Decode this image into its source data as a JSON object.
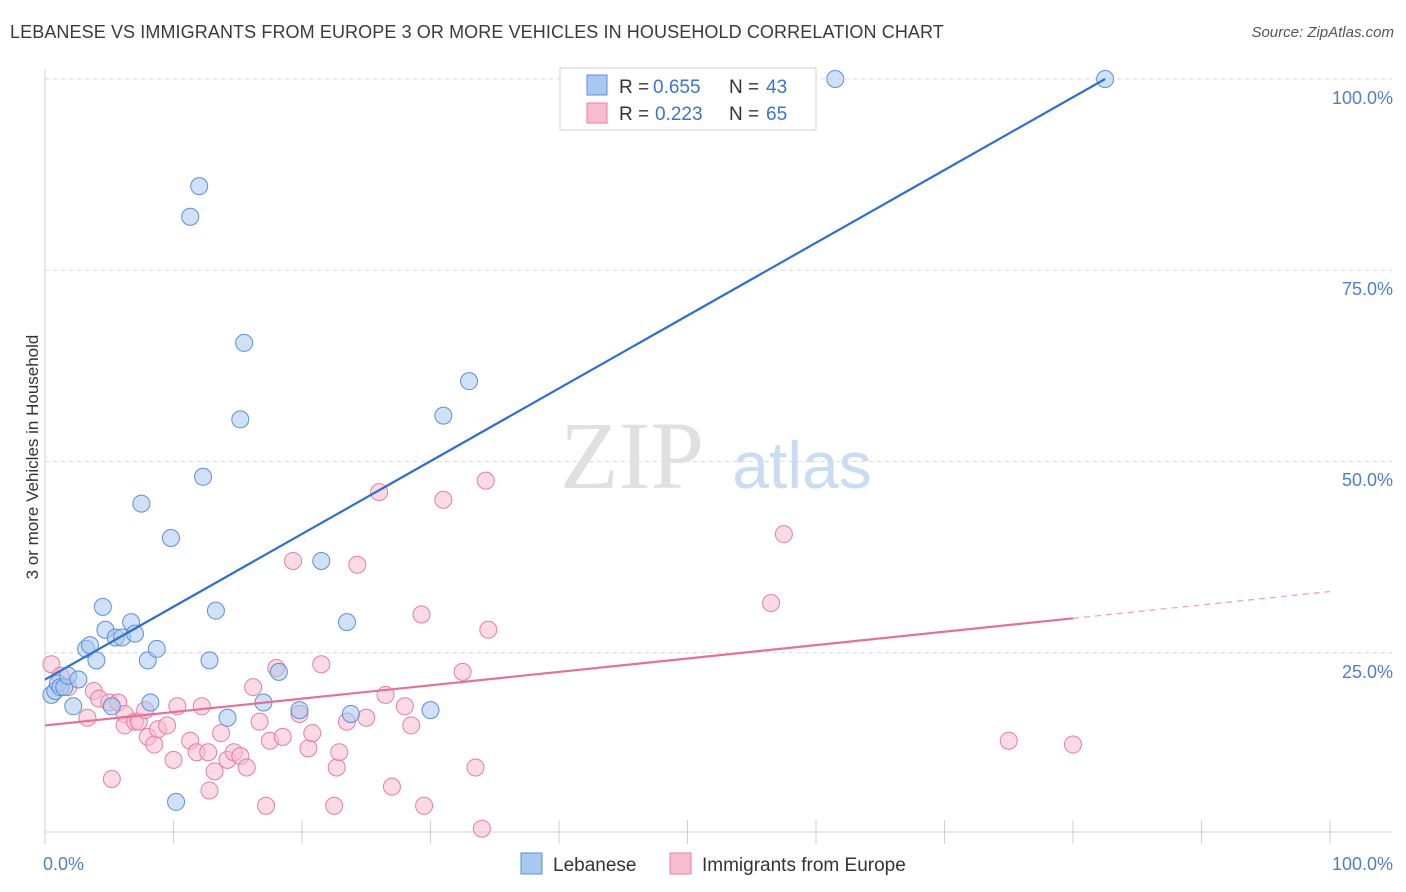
{
  "title": "LEBANESE VS IMMIGRANTS FROM EUROPE 3 OR MORE VEHICLES IN HOUSEHOLD CORRELATION CHART",
  "source": "Source: ZipAtlas.com",
  "watermark": {
    "zip": "ZIP",
    "atlas": "atlas"
  },
  "colors": {
    "blue_fill": "#a9c8f0",
    "blue_stroke": "#5b8fd6",
    "blue_line": "#2f6fcf",
    "pink_fill": "#f7bcd0",
    "pink_stroke": "#e47fa2",
    "pink_line": "#e5709a",
    "tick": "#4f7fc7",
    "grid": "#d9d9d9"
  },
  "legend": {
    "rows": [
      {
        "r_label": "R =",
        "r_value": "0.655",
        "n_label": "N =",
        "n_value": "43"
      },
      {
        "r_label": "R =",
        "r_value": "0.223",
        "n_label": "N =",
        "n_value": "65"
      }
    ]
  },
  "bottom_legend": [
    "Lebanese",
    "Immigrants from Europe"
  ],
  "chart_data": {
    "type": "scatter",
    "title": "LEBANESE VS IMMIGRANTS FROM EUROPE 3 OR MORE VEHICLES IN HOUSEHOLD CORRELATION CHART",
    "xlabel": "",
    "ylabel": "3 or more Vehicles in Household",
    "xlim": [
      0,
      100
    ],
    "ylim": [
      0,
      100
    ],
    "x_ticks": [
      "0.0%",
      "100.0%"
    ],
    "y_ticks": [
      "25.0%",
      "50.0%",
      "75.0%",
      "100.0%"
    ],
    "legend_position": "top-center",
    "grid": true,
    "series": [
      {
        "name": "Lebanese",
        "r": 0.655,
        "n": 43,
        "trend": [
          [
            0,
            21.5
          ],
          [
            82.5,
            100
          ]
        ],
        "points": [
          [
            0.5,
            19.5
          ],
          [
            0.8,
            20
          ],
          [
            1,
            21
          ],
          [
            1.2,
            20.5
          ],
          [
            1.5,
            20.5
          ],
          [
            1.8,
            22
          ],
          [
            2.2,
            18
          ],
          [
            2.6,
            21.5
          ],
          [
            3.2,
            25.5
          ],
          [
            3.5,
            26
          ],
          [
            4,
            24
          ],
          [
            4.5,
            31
          ],
          [
            4.7,
            28
          ],
          [
            5.2,
            18
          ],
          [
            5.5,
            27
          ],
          [
            6,
            27
          ],
          [
            6.7,
            29
          ],
          [
            7,
            27.5
          ],
          [
            7.5,
            44.5
          ],
          [
            8,
            24
          ],
          [
            8.2,
            18.5
          ],
          [
            8.7,
            25.5
          ],
          [
            9.8,
            40
          ],
          [
            10.2,
            5.5
          ],
          [
            11.3,
            82
          ],
          [
            12,
            86
          ],
          [
            12.3,
            48
          ],
          [
            12.8,
            24
          ],
          [
            13.3,
            30.5
          ],
          [
            14.2,
            16.5
          ],
          [
            15.2,
            55.5
          ],
          [
            15.5,
            65.5
          ],
          [
            17,
            18.5
          ],
          [
            18.2,
            22.5
          ],
          [
            19.8,
            17.5
          ],
          [
            21.5,
            37
          ],
          [
            23.5,
            29
          ],
          [
            23.8,
            17
          ],
          [
            30,
            17.5
          ],
          [
            31,
            56
          ],
          [
            33,
            60.5
          ],
          [
            61.5,
            100
          ],
          [
            82.5,
            100
          ]
        ]
      },
      {
        "name": "Immigrants from Europe",
        "r": 0.223,
        "n": 65,
        "trend": [
          [
            0,
            15.5
          ],
          [
            80,
            29.5
          ]
        ],
        "trend_dashed_to": [
          100,
          33
        ],
        "points": [
          [
            0.5,
            23.5
          ],
          [
            1.2,
            22
          ],
          [
            1.8,
            20.5
          ],
          [
            3.3,
            16.5
          ],
          [
            3.8,
            20
          ],
          [
            4.2,
            19
          ],
          [
            5,
            18.5
          ],
          [
            5.2,
            8.5
          ],
          [
            5.7,
            18.5
          ],
          [
            6.2,
            17
          ],
          [
            6.2,
            15.5
          ],
          [
            7,
            16
          ],
          [
            7.3,
            16
          ],
          [
            7.8,
            17.5
          ],
          [
            8,
            14
          ],
          [
            8.5,
            13
          ],
          [
            8.8,
            15
          ],
          [
            9.5,
            15.5
          ],
          [
            10,
            11
          ],
          [
            10.3,
            18
          ],
          [
            11.3,
            13.5
          ],
          [
            11.8,
            12
          ],
          [
            12.2,
            18
          ],
          [
            12.7,
            12
          ],
          [
            12.8,
            7
          ],
          [
            13.2,
            9.5
          ],
          [
            13.7,
            14.5
          ],
          [
            14.2,
            11
          ],
          [
            14.7,
            12
          ],
          [
            15.2,
            11.5
          ],
          [
            15.7,
            10
          ],
          [
            16.2,
            20.5
          ],
          [
            16.7,
            16
          ],
          [
            17.2,
            5
          ],
          [
            17.5,
            13.5
          ],
          [
            18,
            23
          ],
          [
            18.5,
            14
          ],
          [
            19.3,
            37
          ],
          [
            19.8,
            17
          ],
          [
            20.5,
            12.5
          ],
          [
            20.8,
            14.5
          ],
          [
            21.5,
            23.5
          ],
          [
            22.5,
            5
          ],
          [
            22.7,
            10
          ],
          [
            22.9,
            12
          ],
          [
            23.5,
            16
          ],
          [
            24.3,
            36.5
          ],
          [
            25,
            16.5
          ],
          [
            26,
            46
          ],
          [
            26.5,
            19.5
          ],
          [
            27,
            7.5
          ],
          [
            28,
            18
          ],
          [
            28.5,
            15.5
          ],
          [
            29.3,
            30
          ],
          [
            29.5,
            5
          ],
          [
            31,
            45
          ],
          [
            32.5,
            22.5
          ],
          [
            33.5,
            10
          ],
          [
            34,
            2
          ],
          [
            34.3,
            47.5
          ],
          [
            34.5,
            28
          ],
          [
            56.5,
            31.5
          ],
          [
            57.5,
            40.5
          ],
          [
            75,
            13.5
          ],
          [
            80,
            13
          ]
        ]
      }
    ]
  }
}
